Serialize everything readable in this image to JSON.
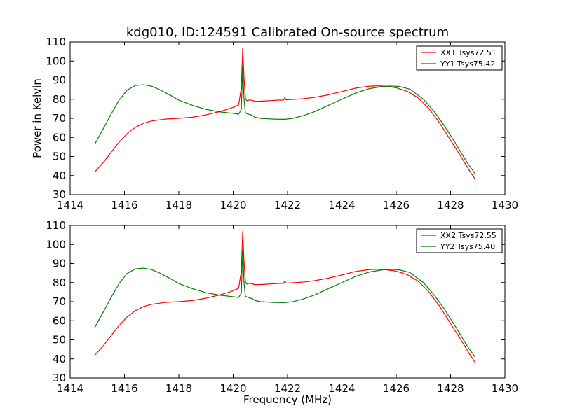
{
  "figure_title": "kdg010, ID:124591 Calibrated On-source spectrum",
  "chart_data": [
    {
      "type": "line",
      "ylabel": "Power in Kelvin",
      "xlabel": "",
      "xlim": [
        1414,
        1430
      ],
      "ylim": [
        30,
        110
      ],
      "xticks": [
        1414,
        1416,
        1418,
        1420,
        1422,
        1424,
        1426,
        1428,
        1430
      ],
      "yticks": [
        30,
        40,
        50,
        60,
        70,
        80,
        90,
        100,
        110
      ],
      "grid": false,
      "legend_position": "top-right",
      "series": [
        {
          "name": "XX1 Tsys72.51",
          "color": "#ff0000",
          "x": [
            1414.9,
            1415.2,
            1415.5,
            1415.8,
            1416.1,
            1416.4,
            1416.7,
            1417.0,
            1417.5,
            1418.0,
            1418.5,
            1419.0,
            1419.5,
            1419.9,
            1420.2,
            1420.3,
            1420.35,
            1420.4,
            1420.45,
            1420.5,
            1420.6,
            1420.7,
            1420.8,
            1421.0,
            1421.3,
            1421.6,
            1421.85,
            1421.9,
            1421.95,
            1422.2,
            1422.6,
            1423.0,
            1423.5,
            1424.0,
            1424.5,
            1425.0,
            1425.3,
            1425.6,
            1426.0,
            1426.4,
            1426.8,
            1427.2,
            1427.6,
            1428.0,
            1428.4,
            1428.7,
            1428.9
          ],
          "y": [
            41.8,
            46.5,
            52.0,
            57.5,
            62.0,
            65.3,
            67.4,
            68.6,
            69.6,
            70.0,
            70.6,
            71.8,
            73.5,
            75.2,
            77.0,
            86.0,
            106.8,
            91.0,
            80.5,
            79.2,
            79.6,
            79.4,
            78.9,
            79.0,
            79.2,
            79.5,
            79.6,
            80.8,
            79.7,
            79.9,
            80.3,
            81.0,
            82.3,
            84.0,
            85.8,
            86.8,
            87.0,
            86.8,
            86.0,
            84.2,
            80.8,
            75.2,
            67.5,
            58.5,
            49.5,
            42.5,
            38.2
          ]
        },
        {
          "name": "YY1 Tsys75.42",
          "color": "#008000",
          "x": [
            1414.9,
            1415.2,
            1415.5,
            1415.8,
            1416.1,
            1416.4,
            1416.7,
            1417.0,
            1417.3,
            1417.7,
            1418.0,
            1418.5,
            1419.0,
            1419.5,
            1420.0,
            1420.2,
            1420.3,
            1420.35,
            1420.4,
            1420.45,
            1420.5,
            1420.6,
            1420.7,
            1420.8,
            1421.0,
            1421.5,
            1421.9,
            1422.2,
            1422.6,
            1423.0,
            1423.5,
            1424.0,
            1424.5,
            1425.0,
            1425.5,
            1425.8,
            1426.1,
            1426.5,
            1427.0,
            1427.4,
            1427.8,
            1428.2,
            1428.6,
            1428.9
          ],
          "y": [
            56.3,
            64.0,
            72.0,
            79.5,
            84.8,
            87.2,
            87.6,
            86.8,
            85.0,
            82.0,
            79.5,
            76.8,
            74.7,
            73.4,
            72.6,
            72.2,
            74.5,
            97.0,
            80.0,
            72.8,
            72.5,
            72.0,
            71.6,
            70.6,
            70.0,
            69.6,
            69.5,
            70.0,
            71.5,
            73.5,
            76.8,
            80.0,
            83.2,
            85.5,
            86.7,
            86.9,
            86.7,
            85.3,
            80.0,
            73.5,
            65.5,
            56.5,
            47.0,
            41.0
          ]
        }
      ]
    },
    {
      "type": "line",
      "ylabel": "",
      "xlabel": "Frequency (MHz)",
      "xlim": [
        1414,
        1430
      ],
      "ylim": [
        30,
        110
      ],
      "xticks": [
        1414,
        1416,
        1418,
        1420,
        1422,
        1424,
        1426,
        1428,
        1430
      ],
      "yticks": [
        30,
        40,
        50,
        60,
        70,
        80,
        90,
        100,
        110
      ],
      "grid": false,
      "legend_position": "top-right",
      "series": [
        {
          "name": "XX2 Tsys72.55",
          "color": "#ff0000",
          "x": [
            1414.9,
            1415.2,
            1415.5,
            1415.8,
            1416.1,
            1416.4,
            1416.7,
            1417.0,
            1417.5,
            1418.0,
            1418.5,
            1419.0,
            1419.5,
            1419.9,
            1420.2,
            1420.3,
            1420.35,
            1420.4,
            1420.45,
            1420.5,
            1420.6,
            1420.7,
            1420.8,
            1421.0,
            1421.3,
            1421.6,
            1421.85,
            1421.9,
            1421.95,
            1422.2,
            1422.6,
            1423.0,
            1423.5,
            1424.0,
            1424.5,
            1425.0,
            1425.3,
            1425.6,
            1426.0,
            1426.4,
            1426.8,
            1427.2,
            1427.6,
            1428.0,
            1428.4,
            1428.7,
            1428.9
          ],
          "y": [
            41.8,
            46.5,
            52.0,
            57.5,
            62.0,
            65.3,
            67.4,
            68.6,
            69.6,
            70.0,
            70.6,
            71.8,
            73.5,
            75.2,
            77.0,
            86.0,
            106.8,
            91.0,
            80.5,
            79.2,
            79.6,
            79.4,
            78.9,
            79.0,
            79.2,
            79.5,
            79.6,
            80.8,
            79.7,
            79.9,
            80.3,
            81.0,
            82.3,
            84.0,
            85.8,
            86.8,
            87.0,
            86.8,
            86.0,
            84.2,
            80.8,
            75.2,
            67.5,
            58.5,
            49.5,
            42.5,
            38.2
          ]
        },
        {
          "name": "YY2 Tsys75.40",
          "color": "#008000",
          "x": [
            1414.9,
            1415.2,
            1415.5,
            1415.8,
            1416.1,
            1416.4,
            1416.7,
            1417.0,
            1417.3,
            1417.7,
            1418.0,
            1418.5,
            1419.0,
            1419.5,
            1420.0,
            1420.2,
            1420.3,
            1420.35,
            1420.4,
            1420.45,
            1420.5,
            1420.6,
            1420.7,
            1420.8,
            1421.0,
            1421.5,
            1421.9,
            1422.2,
            1422.6,
            1423.0,
            1423.5,
            1424.0,
            1424.5,
            1425.0,
            1425.5,
            1425.8,
            1426.1,
            1426.5,
            1427.0,
            1427.4,
            1427.8,
            1428.2,
            1428.6,
            1428.9
          ],
          "y": [
            56.3,
            64.0,
            72.0,
            79.5,
            84.8,
            87.2,
            87.6,
            86.8,
            85.0,
            82.0,
            79.5,
            76.8,
            74.7,
            73.4,
            72.6,
            72.2,
            74.5,
            97.0,
            80.0,
            72.8,
            72.5,
            72.0,
            71.6,
            70.6,
            70.0,
            69.6,
            69.5,
            70.0,
            71.5,
            73.5,
            76.8,
            80.0,
            83.2,
            85.5,
            86.7,
            86.9,
            86.7,
            85.3,
            80.0,
            73.5,
            65.5,
            56.5,
            47.0,
            41.0
          ]
        }
      ]
    }
  ]
}
